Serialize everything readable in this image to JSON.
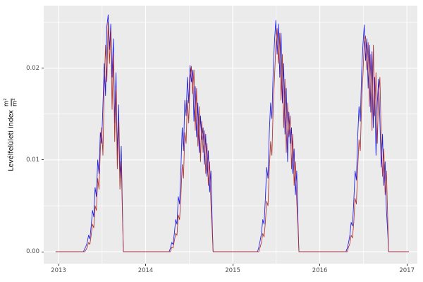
{
  "figure": {
    "background": "#ffffff"
  },
  "chart_data": {
    "type": "line",
    "title": "",
    "xlabel": "",
    "ylabel_text": "Levélfelületi index",
    "ylabel_fraction": {
      "numerator": "m²",
      "denominator": "m²"
    },
    "panel_background": "#ebebeb",
    "grid_color": "#ffffff",
    "tick_label_color": "#4d4d4d",
    "legend": "none",
    "xlim": [
      2012.83,
      2017.12
    ],
    "ylim": [
      -0.0013,
      0.0268
    ],
    "x_ticks": {
      "values": [
        2013,
        2014,
        2015,
        2016,
        2017
      ],
      "labels": [
        "2013",
        "2014",
        "2015",
        "2016",
        "2017"
      ],
      "minor": [
        2013.5,
        2014.5,
        2015.5,
        2016.5
      ]
    },
    "y_ticks": {
      "values": [
        0,
        0.01,
        0.02
      ],
      "labels": [
        "0.00",
        "0.01",
        "0.02"
      ],
      "minor": [
        0.005,
        0.015,
        0.025
      ]
    },
    "x": [
      2012.97,
      2013.285,
      2013.3,
      2013.315,
      2013.33,
      2013.345,
      2013.36,
      2013.375,
      2013.39,
      2013.405,
      2013.42,
      2013.435,
      2013.45,
      2013.465,
      2013.48,
      2013.495,
      2013.51,
      2013.525,
      2013.54,
      2013.555,
      2013.57,
      2013.585,
      2013.6,
      2013.615,
      2013.63,
      2013.645,
      2013.66,
      2013.675,
      2013.69,
      2013.705,
      2013.72,
      2013.735,
      2013.745,
      2014.27,
      2014.285,
      2014.3,
      2014.315,
      2014.33,
      2014.345,
      2014.36,
      2014.375,
      2014.39,
      2014.405,
      2014.42,
      2014.435,
      2014.45,
      2014.465,
      2014.48,
      2014.495,
      2014.51,
      2014.525,
      2014.54,
      2014.555,
      2014.57,
      2014.585,
      2014.6,
      2014.615,
      2014.63,
      2014.645,
      2014.66,
      2014.675,
      2014.69,
      2014.705,
      2014.72,
      2014.735,
      2014.75,
      2014.765,
      2014.775,
      2015.285,
      2015.3,
      2015.315,
      2015.33,
      2015.345,
      2015.36,
      2015.375,
      2015.39,
      2015.405,
      2015.42,
      2015.435,
      2015.45,
      2015.465,
      2015.48,
      2015.495,
      2015.51,
      2015.525,
      2015.54,
      2015.555,
      2015.57,
      2015.585,
      2015.6,
      2015.615,
      2015.63,
      2015.645,
      2015.66,
      2015.675,
      2015.69,
      2015.705,
      2015.72,
      2015.735,
      2015.75,
      2015.76,
      2016.3,
      2016.315,
      2016.33,
      2016.345,
      2016.36,
      2016.375,
      2016.39,
      2016.405,
      2016.42,
      2016.435,
      2016.45,
      2016.465,
      2016.48,
      2016.495,
      2016.51,
      2016.525,
      2016.54,
      2016.555,
      2016.57,
      2016.585,
      2016.6,
      2016.615,
      2016.63,
      2016.645,
      2016.66,
      2016.675,
      2016.69,
      2016.705,
      2016.72,
      2016.735,
      2016.75,
      2016.765,
      2016.78,
      2016.79,
      2017.02
    ],
    "series": [
      {
        "name": "blue-line",
        "color": "#1a1ae6",
        "values": [
          0,
          0,
          0.0003,
          0.0006,
          0.001,
          0.0018,
          0.0014,
          0.0028,
          0.0045,
          0.0038,
          0.007,
          0.006,
          0.01,
          0.0085,
          0.013,
          0.0118,
          0.016,
          0.0205,
          0.017,
          0.0245,
          0.0258,
          0.022,
          0.0248,
          0.019,
          0.0232,
          0.014,
          0.0195,
          0.0105,
          0.016,
          0.008,
          0.0115,
          0.004,
          0,
          0,
          0.0004,
          0.001,
          0.0008,
          0.002,
          0.0035,
          0.003,
          0.006,
          0.0052,
          0.009,
          0.0135,
          0.011,
          0.0165,
          0.0148,
          0.019,
          0.0162,
          0.0203,
          0.0185,
          0.0198,
          0.0142,
          0.018,
          0.0125,
          0.0162,
          0.0108,
          0.0148,
          0.0122,
          0.0135,
          0.0095,
          0.0128,
          0.0082,
          0.011,
          0.0065,
          0.0088,
          0.003,
          0,
          0,
          0.0005,
          0.0012,
          0.002,
          0.0035,
          0.003,
          0.0058,
          0.0092,
          0.008,
          0.013,
          0.0162,
          0.0145,
          0.0198,
          0.023,
          0.0252,
          0.0215,
          0.0248,
          0.019,
          0.0238,
          0.0162,
          0.0205,
          0.0128,
          0.0178,
          0.0098,
          0.0152,
          0.0118,
          0.0135,
          0.0085,
          0.0112,
          0.0062,
          0.0088,
          0.0032,
          0,
          0,
          0.0004,
          0.001,
          0.0018,
          0.0032,
          0.0028,
          0.0055,
          0.0088,
          0.0078,
          0.0125,
          0.0158,
          0.0142,
          0.0195,
          0.0225,
          0.0247,
          0.0208,
          0.0232,
          0.0178,
          0.0225,
          0.0152,
          0.0218,
          0.0135,
          0.019,
          0.0105,
          0.0162,
          0.0188,
          0.0142,
          0.0092,
          0.0128,
          0.0072,
          0.0098,
          0.0045,
          0.002,
          0,
          0
        ]
      },
      {
        "name": "dark-red-line",
        "color": "#b03030",
        "values": [
          0,
          0,
          0,
          0.0002,
          0.0005,
          0.001,
          0.0008,
          0.0018,
          0.003,
          0.0026,
          0.005,
          0.0045,
          0.008,
          0.0068,
          0.011,
          0.0135,
          0.0105,
          0.018,
          0.0225,
          0.0185,
          0.025,
          0.0205,
          0.0242,
          0.0155,
          0.0215,
          0.012,
          0.0178,
          0.009,
          0.0142,
          0.0068,
          0.0098,
          0.0035,
          0,
          0,
          0,
          0.0005,
          0.0004,
          0.0012,
          0.002,
          0.0018,
          0.004,
          0.0035,
          0.006,
          0.0095,
          0.008,
          0.013,
          0.0118,
          0.0165,
          0.014,
          0.0188,
          0.0202,
          0.0172,
          0.0198,
          0.0132,
          0.0178,
          0.0115,
          0.0158,
          0.0098,
          0.0142,
          0.0108,
          0.0132,
          0.0085,
          0.0118,
          0.0072,
          0.0098,
          0.0052,
          0.0022,
          0,
          0,
          0,
          0.0005,
          0.001,
          0.002,
          0.0016,
          0.0032,
          0.0055,
          0.005,
          0.009,
          0.012,
          0.0105,
          0.0158,
          0.019,
          0.0225,
          0.0243,
          0.0205,
          0.0238,
          0.0165,
          0.0215,
          0.0135,
          0.0188,
          0.0108,
          0.0162,
          0.0125,
          0.0148,
          0.009,
          0.0128,
          0.0072,
          0.0098,
          0.0055,
          0.0025,
          0,
          0,
          0,
          0.0005,
          0.0009,
          0.0018,
          0.0015,
          0.0032,
          0.0058,
          0.0052,
          0.009,
          0.0122,
          0.011,
          0.0162,
          0.0192,
          0.0228,
          0.0235,
          0.0198,
          0.0228,
          0.0158,
          0.0215,
          0.0132,
          0.0225,
          0.0148,
          0.0195,
          0.0118,
          0.0172,
          0.019,
          0.0125,
          0.0082,
          0.0112,
          0.0062,
          0.0088,
          0.0035,
          0,
          0
        ]
      }
    ]
  }
}
